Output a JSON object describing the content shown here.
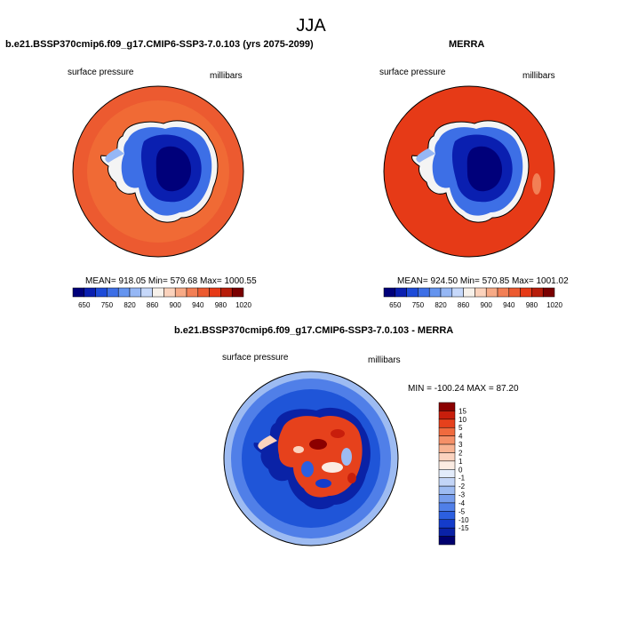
{
  "page_title": "JJA",
  "panels": [
    {
      "title": "b.e21.BSSP370cmip6.f09_g17.CMIP6-SSP3-7.0.103 (yrs 2075-2099)",
      "variable": "surface pressure",
      "units": "millibars",
      "stats": "MEAN= 918.05   Min= 579.68   Max= 1000.55"
    },
    {
      "title": "MERRA",
      "variable": "surface pressure",
      "units": "millibars",
      "stats": "MEAN= 924.50   Min= 570.85   Max= 1001.02"
    }
  ],
  "abs_colorbar": {
    "colors": [
      "#00007a",
      "#0a1fb0",
      "#1d4bd8",
      "#3d6fe6",
      "#6494ef",
      "#95b7f5",
      "#c6d8fa",
      "#f7f1ea",
      "#fbd2bc",
      "#f7aa86",
      "#f27f55",
      "#ec5a30",
      "#e63a17",
      "#b71d0a",
      "#7a0000"
    ],
    "labels": [
      "650",
      "750",
      "820",
      "860",
      "900",
      "940",
      "980",
      "1020"
    ]
  },
  "diff_panel": {
    "title": "b.e21.BSSP370cmip6.f09_g17.CMIP6-SSP3-7.0.103 - MERRA",
    "variable": "surface pressure",
    "units": "millibars",
    "stats": "MIN = -100.24  MAX =  87.20"
  },
  "diff_colorbar": {
    "colors": [
      "#8b0000",
      "#c81e0c",
      "#e6411c",
      "#f06a3e",
      "#f59068",
      "#f8b392",
      "#fbd3bf",
      "#fbece3",
      "#e3ecfb",
      "#c3d5f7",
      "#9dbbf2",
      "#769ded",
      "#507fe8",
      "#2c5fe0",
      "#143ccb",
      "#0a22a6",
      "#00006e"
    ],
    "labels": [
      "15",
      "10",
      "5",
      "4",
      "3",
      "2",
      "1",
      "0",
      "-1",
      "-2",
      "-3",
      "-4",
      "-5",
      "-10",
      "-15"
    ]
  },
  "colors": {
    "ocean_model": "#ec5a30",
    "ocean_model_ring": "#f06a35",
    "ocean_obs": "#e63a17",
    "diff_ocean": "#1f55d8"
  }
}
